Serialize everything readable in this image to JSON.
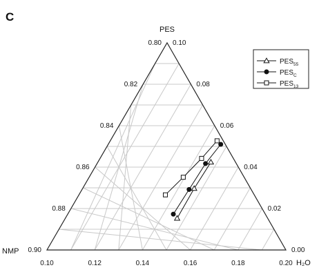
{
  "chart_data": {
    "type": "scatter",
    "panel_label": "C",
    "axes": {
      "top": {
        "label": "PES",
        "range": [
          0.8,
          0.9
        ]
      },
      "left": {
        "label": "NMP",
        "range": [
          0.1,
          0.2
        ]
      },
      "right": {
        "label": "H₂O",
        "range": [
          0.0,
          0.1
        ]
      }
    },
    "left_edge_ticks": [
      "0.80",
      "0.82",
      "0.84",
      "0.86",
      "0.88",
      "0.90"
    ],
    "right_edge_ticks": [
      "0.10",
      "0.08",
      "0.06",
      "0.04",
      "0.02",
      "0.00"
    ],
    "bottom_edge_ticks": [
      "0.10",
      "0.12",
      "0.14",
      "0.16",
      "0.18",
      "0.20"
    ],
    "grid": true,
    "legend_position": "top-right",
    "series": [
      {
        "name": "PES55",
        "label_main": "PES",
        "label_sub": "55",
        "marker": "triangle-open",
        "points": [
          [
            0.1468,
            0.0379
          ],
          [
            0.1467,
            0.0236
          ],
          [
            0.1473,
            0.0103
          ]
        ]
      },
      {
        "name": "PESC",
        "label_main": "PES",
        "label_sub": "C",
        "marker": "circle-filled",
        "points": [
          [
            0.1442,
            0.0385
          ],
          [
            0.1448,
            0.026
          ],
          [
            0.1454,
            0.0129
          ],
          [
            0.1471,
            0.0019
          ]
        ]
      },
      {
        "name": "PES13",
        "label_main": "PES",
        "label_sub": "13",
        "marker": "square-open",
        "points": [
          [
            0.1362,
            0.0372
          ],
          [
            0.1394,
            0.0255
          ],
          [
            0.1425,
            0.0133
          ],
          [
            0.1447,
            0.0026
          ]
        ]
      }
    ]
  }
}
